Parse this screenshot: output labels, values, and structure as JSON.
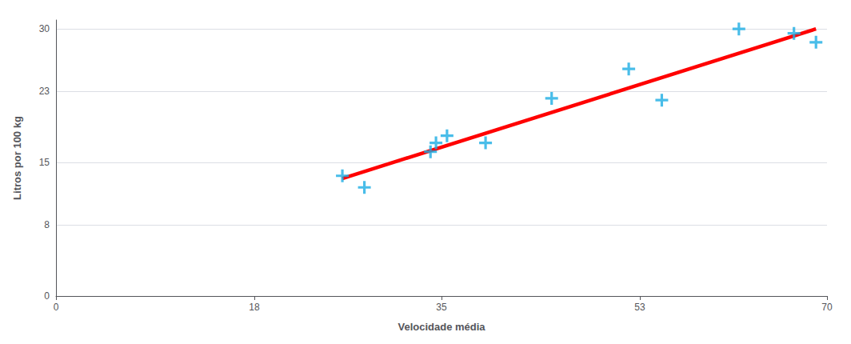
{
  "chart_data": {
    "type": "scatter",
    "xlabel": "Velocidade média",
    "ylabel": "Litros por 100 kg",
    "series": [
      {
        "type": "line",
        "x": [
          26,
          69
        ],
        "values": [
          13.2,
          30.0
        ],
        "color": "#FF0000",
        "line_style": "solid"
      },
      {
        "type": "scatter",
        "x": [
          26,
          28,
          34,
          34.5,
          35.5,
          39,
          45,
          52,
          55,
          62,
          67,
          69
        ],
        "values": [
          13.5,
          12.2,
          16.2,
          17.2,
          18.0,
          17.2,
          22.2,
          25.5,
          22.0,
          30.0,
          29.5,
          28.5
        ],
        "color": "#1BACE4",
        "marker": "+"
      }
    ],
    "xlim": [
      0,
      70
    ],
    "ylim": [
      0,
      31
    ],
    "xticks": [
      0,
      18,
      35,
      53,
      70
    ],
    "yticks": [
      0,
      8,
      15,
      23,
      30
    ],
    "grid": true
  }
}
